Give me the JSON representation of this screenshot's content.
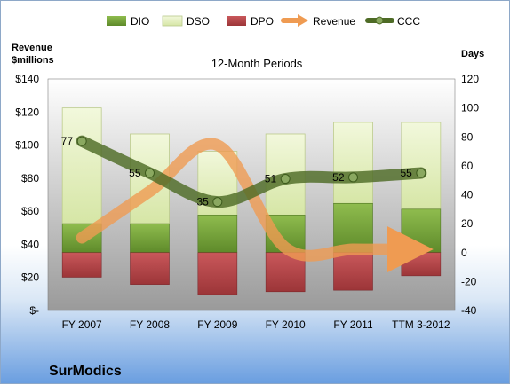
{
  "chart_data": {
    "type": "bar",
    "title": "12-Month Periods",
    "company": "SurModics",
    "categories": [
      "FY 2007",
      "FY 2008",
      "FY 2009",
      "FY 2010",
      "FY 2011",
      "TTM 3-2012"
    ],
    "left_axis": {
      "label_lines": [
        "Revenue",
        "$millions"
      ],
      "ylim": [
        0,
        140
      ],
      "ticks": [
        0,
        20,
        40,
        60,
        80,
        100,
        120,
        140
      ],
      "tick_labels": [
        "$-",
        "$20",
        "$40",
        "$60",
        "$80",
        "$100",
        "$120",
        "$140"
      ]
    },
    "right_axis": {
      "label": "Days",
      "ylim": [
        -40,
        120
      ],
      "ticks": [
        -40,
        -20,
        0,
        20,
        40,
        60,
        80,
        100,
        120
      ],
      "tick_labels": [
        "-40",
        "-20",
        "0",
        "20",
        "40",
        "60",
        "80",
        "100",
        "120"
      ]
    },
    "grid": false,
    "legend_position": "top",
    "series": [
      {
        "name": "DIO",
        "kind": "bar",
        "axis": "right",
        "color": "#77a33a",
        "values": [
          20,
          20,
          26,
          26,
          34,
          30
        ]
      },
      {
        "name": "DSO",
        "kind": "bar",
        "axis": "right",
        "color": "#e6f0c4",
        "values": [
          80,
          62,
          44,
          56,
          56,
          60
        ]
      },
      {
        "name": "DPO",
        "kind": "bar",
        "axis": "right",
        "color": "#b8474a",
        "values": [
          -17,
          -22,
          -29,
          -27,
          -26,
          -16
        ]
      },
      {
        "name": "Revenue",
        "kind": "line",
        "axis": "left",
        "color": "#ef9b52",
        "values": [
          44,
          72,
          100,
          38,
          37,
          37
        ]
      },
      {
        "name": "CCC",
        "kind": "line",
        "axis": "right",
        "color": "#4e6b26",
        "values": [
          77,
          55,
          35,
          51,
          52,
          55
        ]
      }
    ],
    "ccc_labels": [
      "77",
      "55",
      "35",
      "51",
      "52",
      "55"
    ]
  }
}
